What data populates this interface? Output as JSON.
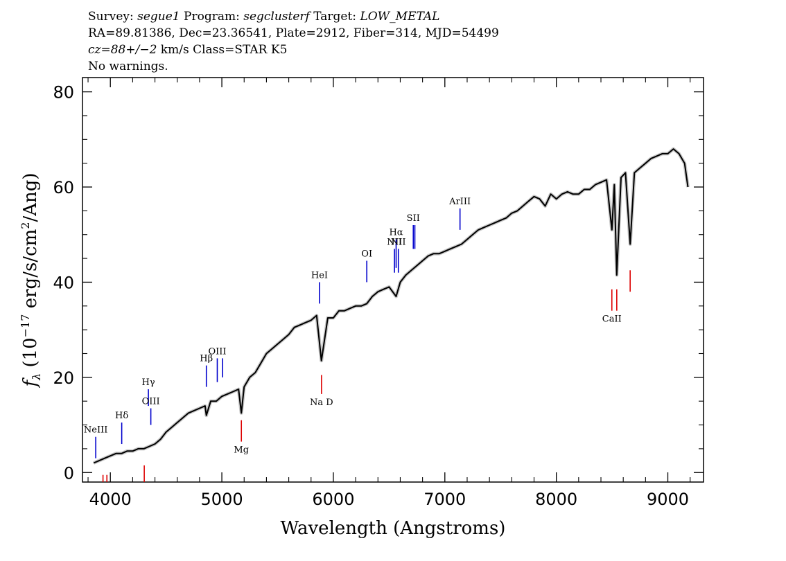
{
  "header": {
    "line1": {
      "survey_label": "Survey: ",
      "survey": "segue1",
      "program_label": " Program: ",
      "program": "segclusterf",
      "target_label": " Target: ",
      "target": "LOW_METAL"
    },
    "line2": "RA=89.81386, Dec=23.36541, Plate=2912, Fiber=314, MJD=54499",
    "line3": {
      "cz": "cz=88+/−2",
      "rest": " km/s Class=STAR K5"
    },
    "line4": "No warnings."
  },
  "chart_data": {
    "type": "line",
    "xlabel": "Wavelength (Angstroms)",
    "ylabel_parts": {
      "f": "f",
      "sub": "λ",
      "pre": " (10",
      "exp1": "−17",
      "mid": " erg/s/cm",
      "exp2": "2",
      "post": "/Ang)"
    },
    "xlim": [
      3750,
      9320
    ],
    "ylim": [
      -2,
      83
    ],
    "xticks": [
      4000,
      5000,
      6000,
      7000,
      8000,
      9000
    ],
    "yticks": [
      0,
      20,
      40,
      60,
      80
    ],
    "series": [
      {
        "color": "#000000",
        "x": [
          3850,
          3900,
          3950,
          4000,
          4050,
          4100,
          4150,
          4200,
          4250,
          4300,
          4350,
          4400,
          4450,
          4500,
          4550,
          4600,
          4650,
          4700,
          4750,
          4800,
          4850,
          4861,
          4900,
          4950,
          5000,
          5050,
          5100,
          5150,
          5175,
          5200,
          5250,
          5300,
          5350,
          5400,
          5450,
          5500,
          5550,
          5600,
          5650,
          5700,
          5750,
          5800,
          5850,
          5893,
          5950,
          6000,
          6050,
          6100,
          6150,
          6200,
          6250,
          6300,
          6350,
          6400,
          6450,
          6500,
          6563,
          6600,
          6650,
          6700,
          6750,
          6800,
          6850,
          6900,
          6950,
          7000,
          7050,
          7100,
          7150,
          7200,
          7250,
          7300,
          7350,
          7400,
          7450,
          7500,
          7550,
          7600,
          7650,
          7700,
          7750,
          7800,
          7850,
          7900,
          7950,
          8000,
          8050,
          8100,
          8150,
          8200,
          8250,
          8300,
          8350,
          8400,
          8450,
          8498,
          8520,
          8542,
          8580,
          8620,
          8662,
          8700,
          8750,
          8800,
          8850,
          8900,
          8950,
          9000,
          9050,
          9100,
          9150,
          9180
        ],
        "y": [
          2,
          2.5,
          3,
          3.5,
          4,
          4,
          4.5,
          4.5,
          5,
          5,
          5.5,
          6,
          7,
          8.5,
          9.5,
          10.5,
          11.5,
          12.5,
          13,
          13.5,
          14,
          12,
          15,
          15,
          16,
          16.5,
          17,
          17.5,
          12.5,
          18,
          20,
          21,
          23,
          25,
          26,
          27,
          28,
          29,
          30.5,
          31,
          31.5,
          32,
          33,
          23.5,
          32.5,
          32.5,
          34,
          34,
          34.5,
          35,
          35,
          35.5,
          37,
          38,
          38.5,
          39,
          37,
          40,
          41.5,
          42.5,
          43.5,
          44.5,
          45.5,
          46,
          46,
          46.5,
          47,
          47.5,
          48,
          49,
          50,
          51,
          51.5,
          52,
          52.5,
          53,
          53.5,
          54.5,
          55,
          56,
          57,
          58,
          57.5,
          56,
          58.5,
          57.5,
          58.5,
          59,
          58.5,
          58.5,
          59.5,
          59.5,
          60.5,
          61,
          61.5,
          51,
          60.5,
          41.5,
          62,
          63,
          48,
          63,
          64,
          65,
          66,
          66.5,
          67,
          67,
          68,
          67,
          65,
          60
        ]
      }
    ],
    "line_markers": {
      "emission_color": "#0000cc",
      "absorption_color": "#dd0000",
      "emission": [
        {
          "label": "NeIII",
          "x": 3869,
          "y_low": 3,
          "y_high": 7.5
        },
        {
          "label": "Hδ",
          "x": 4102,
          "y_low": 6,
          "y_high": 10.5
        },
        {
          "label": "Hγ",
          "x": 4341,
          "y_low": 14,
          "y_high": 17.5
        },
        {
          "label": "OIII",
          "x": 4363,
          "y_low": 10,
          "y_high": 13.5
        },
        {
          "label": "Hβ",
          "x": 4861,
          "y_low": 18,
          "y_high": 22.5
        },
        {
          "label": "OIII",
          "x": 4959,
          "y_low": 19,
          "y_high": 24
        },
        {
          "label": "",
          "x": 5007,
          "y_low": 20,
          "y_high": 24
        },
        {
          "label": "HeI",
          "x": 5876,
          "y_low": 35.5,
          "y_high": 40
        },
        {
          "label": "OI",
          "x": 6300,
          "y_low": 40,
          "y_high": 44.5
        },
        {
          "label": "NII",
          "x": 6548,
          "y_low": 42,
          "y_high": 47
        },
        {
          "label": "Hα",
          "x": 6563,
          "y_low": 43,
          "y_high": 49
        },
        {
          "label": "NII",
          "x": 6583,
          "y_low": 42,
          "y_high": 47
        },
        {
          "label": "SII",
          "x": 6717,
          "y_low": 47,
          "y_high": 52
        },
        {
          "label": "",
          "x": 6731,
          "y_low": 47,
          "y_high": 52
        },
        {
          "label": "ArIII",
          "x": 7136,
          "y_low": 51,
          "y_high": 55.5
        }
      ],
      "absorption": [
        {
          "label": "",
          "x": 3934,
          "y_low": -2,
          "y_high": -0.5
        },
        {
          "label": "",
          "x": 3969,
          "y_low": -2,
          "y_high": -0.5
        },
        {
          "label": "",
          "x": 4304,
          "y_low": -2,
          "y_high": 1.5
        },
        {
          "label": "Mg",
          "x": 5175,
          "y_low": 6.5,
          "y_high": 11
        },
        {
          "label": "Na D",
          "x": 5894,
          "y_low": 16.5,
          "y_high": 20.5
        },
        {
          "label": "CaII",
          "x": 8498,
          "y_low": 34,
          "y_high": 38.5
        },
        {
          "label": "",
          "x": 8542,
          "y_low": 34,
          "y_high": 38.5
        },
        {
          "label": "",
          "x": 8662,
          "y_low": 38,
          "y_high": 42.5
        }
      ]
    }
  }
}
